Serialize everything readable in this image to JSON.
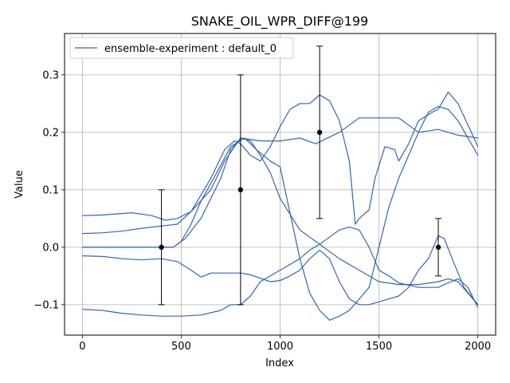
{
  "chart_data": {
    "type": "line",
    "title": "SNAKE_OIL_WPR_DIFF@199",
    "xlabel": "Index",
    "ylabel": "Value",
    "xlim": [
      -90,
      2090
    ],
    "ylim": [
      -0.153,
      0.372
    ],
    "xticks": [
      0,
      500,
      1000,
      1500,
      2000
    ],
    "yticks": [
      -0.1,
      0.0,
      0.1,
      0.2,
      0.3
    ],
    "xtick_labels": [
      "0",
      "500",
      "1000",
      "1500",
      "2000"
    ],
    "ytick_labels": [
      "−0.1",
      "0.0",
      "0.1",
      "0.2",
      "0.3"
    ],
    "grid": true,
    "legend": {
      "position": "top-left",
      "entries": [
        "ensemble-experiment : default_0"
      ]
    },
    "line_color": "#3366b3",
    "series": [
      {
        "values": [
          [
            0,
            0.055
          ],
          [
            100,
            0.056
          ],
          [
            250,
            0.06
          ],
          [
            350,
            0.055
          ],
          [
            420,
            0.047
          ],
          [
            480,
            0.05
          ],
          [
            550,
            0.062
          ],
          [
            650,
            0.1
          ],
          [
            720,
            0.15
          ],
          [
            800,
            0.19
          ],
          [
            850,
            0.185
          ],
          [
            900,
            0.16
          ],
          [
            950,
            0.13
          ],
          [
            1000,
            0.085
          ],
          [
            1100,
            0.03
          ],
          [
            1200,
            0.005
          ],
          [
            1300,
            -0.02
          ],
          [
            1400,
            -0.04
          ],
          [
            1500,
            -0.06
          ],
          [
            1600,
            -0.065
          ],
          [
            1700,
            -0.065
          ],
          [
            1800,
            -0.06
          ],
          [
            1850,
            -0.055
          ],
          [
            1900,
            -0.06
          ],
          [
            2000,
            -0.1
          ]
        ]
      },
      {
        "values": [
          [
            0,
            0.024
          ],
          [
            100,
            0.025
          ],
          [
            200,
            0.028
          ],
          [
            300,
            0.033
          ],
          [
            400,
            0.037
          ],
          [
            480,
            0.04
          ],
          [
            550,
            0.062
          ],
          [
            650,
            0.12
          ],
          [
            720,
            0.17
          ],
          [
            770,
            0.185
          ],
          [
            800,
            0.18
          ],
          [
            850,
            0.16
          ],
          [
            900,
            0.15
          ],
          [
            950,
            0.175
          ],
          [
            1000,
            0.21
          ],
          [
            1050,
            0.24
          ],
          [
            1100,
            0.25
          ],
          [
            1150,
            0.25
          ],
          [
            1200,
            0.265
          ],
          [
            1250,
            0.255
          ],
          [
            1300,
            0.22
          ],
          [
            1350,
            0.15
          ],
          [
            1380,
            0.04
          ],
          [
            1400,
            0.05
          ],
          [
            1450,
            0.065
          ],
          [
            1480,
            0.12
          ],
          [
            1530,
            0.175
          ],
          [
            1580,
            0.17
          ],
          [
            1600,
            0.15
          ],
          [
            1650,
            0.18
          ],
          [
            1700,
            0.22
          ],
          [
            1770,
            0.235
          ],
          [
            1800,
            0.24
          ],
          [
            1850,
            0.27
          ],
          [
            1900,
            0.25
          ],
          [
            2000,
            0.175
          ]
        ]
      },
      {
        "values": [
          [
            0,
            0.0
          ],
          [
            200,
            0.0
          ],
          [
            400,
            0.0
          ],
          [
            460,
            0.0
          ],
          [
            520,
            0.015
          ],
          [
            600,
            0.05
          ],
          [
            700,
            0.12
          ],
          [
            750,
            0.17
          ],
          [
            800,
            0.19
          ],
          [
            900,
            0.185
          ],
          [
            1000,
            0.185
          ],
          [
            1100,
            0.19
          ],
          [
            1180,
            0.18
          ],
          [
            1300,
            0.2
          ],
          [
            1400,
            0.225
          ],
          [
            1500,
            0.225
          ],
          [
            1600,
            0.225
          ],
          [
            1700,
            0.2
          ],
          [
            1800,
            0.205
          ],
          [
            1900,
            0.195
          ],
          [
            2000,
            0.19
          ]
        ]
      },
      {
        "values": [
          [
            0,
            -0.015
          ],
          [
            100,
            -0.016
          ],
          [
            200,
            -0.02
          ],
          [
            300,
            -0.022
          ],
          [
            400,
            -0.02
          ],
          [
            480,
            -0.025
          ],
          [
            550,
            -0.04
          ],
          [
            600,
            -0.052
          ],
          [
            650,
            -0.045
          ],
          [
            700,
            -0.045
          ],
          [
            800,
            -0.045
          ],
          [
            850,
            -0.048
          ],
          [
            950,
            -0.06
          ],
          [
            1000,
            -0.058
          ],
          [
            1050,
            -0.05
          ],
          [
            1100,
            -0.04
          ],
          [
            1150,
            -0.02
          ],
          [
            1200,
            -0.005
          ],
          [
            1250,
            -0.02
          ],
          [
            1300,
            -0.06
          ],
          [
            1350,
            -0.09
          ],
          [
            1400,
            -0.1
          ],
          [
            1450,
            -0.1
          ],
          [
            1500,
            -0.095
          ],
          [
            1550,
            -0.09
          ],
          [
            1600,
            -0.085
          ],
          [
            1650,
            -0.07
          ],
          [
            1700,
            -0.04
          ],
          [
            1750,
            -0.02
          ],
          [
            1800,
            0.02
          ],
          [
            1830,
            0.015
          ],
          [
            1870,
            -0.02
          ],
          [
            1930,
            -0.07
          ],
          [
            2000,
            -0.1
          ]
        ]
      },
      {
        "values": [
          [
            0,
            -0.108
          ],
          [
            100,
            -0.11
          ],
          [
            200,
            -0.115
          ],
          [
            300,
            -0.118
          ],
          [
            400,
            -0.12
          ],
          [
            500,
            -0.12
          ],
          [
            600,
            -0.118
          ],
          [
            700,
            -0.11
          ],
          [
            750,
            -0.1
          ],
          [
            800,
            -0.1
          ],
          [
            850,
            -0.085
          ],
          [
            900,
            -0.06
          ],
          [
            1000,
            -0.04
          ],
          [
            1050,
            -0.03
          ],
          [
            1100,
            -0.02
          ],
          [
            1150,
            -0.005
          ],
          [
            1200,
            0.005
          ],
          [
            1300,
            0.03
          ],
          [
            1350,
            0.035
          ],
          [
            1400,
            0.03
          ],
          [
            1450,
            0.0
          ],
          [
            1500,
            -0.04
          ],
          [
            1550,
            -0.05
          ],
          [
            1600,
            -0.062
          ],
          [
            1700,
            -0.07
          ],
          [
            1800,
            -0.07
          ],
          [
            1850,
            -0.062
          ],
          [
            1900,
            -0.055
          ],
          [
            1950,
            -0.07
          ],
          [
            2000,
            -0.105
          ]
        ]
      },
      {
        "values": [
          [
            0,
            0.0
          ],
          [
            300,
            0.0
          ],
          [
            460,
            0.0
          ],
          [
            500,
            0.01
          ],
          [
            550,
            0.04
          ],
          [
            600,
            0.08
          ],
          [
            680,
            0.13
          ],
          [
            750,
            0.175
          ],
          [
            820,
            0.19
          ],
          [
            880,
            0.17
          ],
          [
            950,
            0.15
          ],
          [
            1000,
            0.14
          ],
          [
            1050,
            0.06
          ],
          [
            1100,
            -0.02
          ],
          [
            1150,
            -0.08
          ],
          [
            1200,
            -0.11
          ],
          [
            1250,
            -0.127
          ],
          [
            1300,
            -0.12
          ],
          [
            1350,
            -0.11
          ],
          [
            1400,
            -0.09
          ],
          [
            1450,
            -0.07
          ],
          [
            1500,
            0.0
          ],
          [
            1550,
            0.07
          ],
          [
            1600,
            0.12
          ],
          [
            1650,
            0.16
          ],
          [
            1700,
            0.2
          ],
          [
            1750,
            0.235
          ],
          [
            1800,
            0.245
          ],
          [
            1850,
            0.24
          ],
          [
            1900,
            0.22
          ],
          [
            2000,
            0.16
          ]
        ]
      }
    ],
    "error_bars": [
      {
        "x": 400,
        "y": 0.0,
        "lower": -0.1,
        "upper": 0.1
      },
      {
        "x": 800,
        "y": 0.1,
        "lower": -0.1,
        "upper": 0.3
      },
      {
        "x": 1200,
        "y": 0.2,
        "lower": 0.05,
        "upper": 0.35
      },
      {
        "x": 1800,
        "y": 0.0,
        "lower": -0.05,
        "upper": 0.05
      }
    ]
  }
}
